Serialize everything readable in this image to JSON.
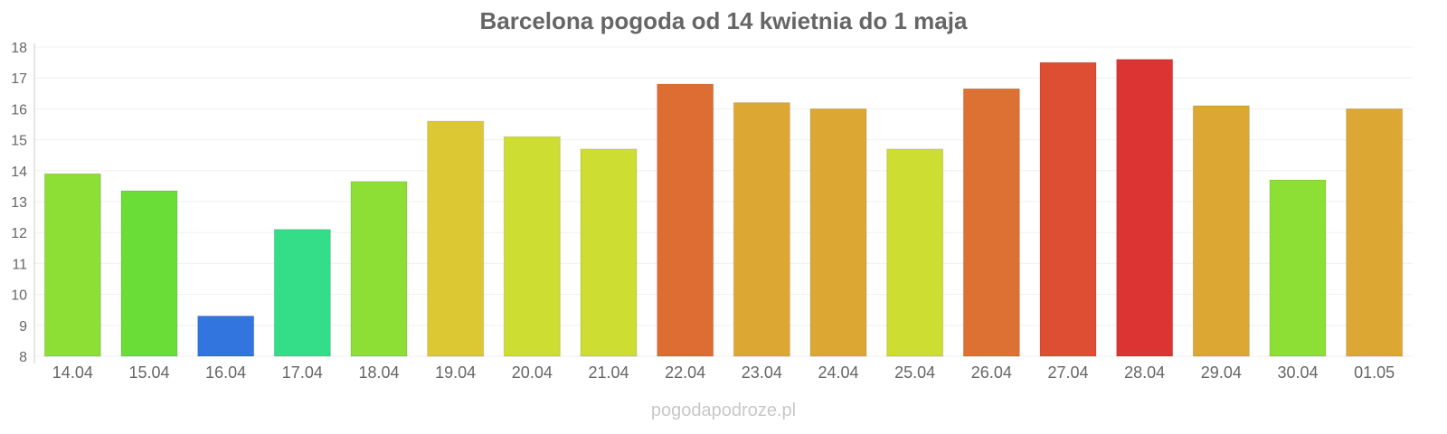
{
  "chart_data": {
    "type": "bar",
    "title": "Barcelona pogoda od 14 kwietnia do 1 maja",
    "xlabel": "",
    "ylabel": "",
    "ylim": [
      8,
      18
    ],
    "yticks": [
      8,
      9,
      10,
      11,
      12,
      13,
      14,
      15,
      16,
      17,
      18
    ],
    "grid": true,
    "categories": [
      "14.04",
      "15.04",
      "16.04",
      "17.04",
      "18.04",
      "19.04",
      "20.04",
      "21.04",
      "22.04",
      "23.04",
      "24.04",
      "25.04",
      "26.04",
      "27.04",
      "28.04",
      "29.04",
      "30.04",
      "01.05"
    ],
    "values": [
      13.9,
      13.35,
      9.3,
      12.1,
      13.65,
      15.6,
      15.1,
      14.7,
      16.8,
      16.2,
      16.0,
      14.7,
      16.65,
      17.5,
      17.6,
      16.1,
      13.7,
      16.0
    ],
    "colors": [
      "#8ddf35",
      "#6bdd37",
      "#3275de",
      "#34dd88",
      "#8ddf35",
      "#dcc832",
      "#cddd32",
      "#cddd32",
      "#dd6d33",
      "#dca833",
      "#dca833",
      "#cddd32",
      "#dd7033",
      "#dd4e33",
      "#dc3333",
      "#dca833",
      "#8ddf35",
      "#dca833"
    ]
  },
  "footer": {
    "source": "pogodapodroze.pl"
  }
}
